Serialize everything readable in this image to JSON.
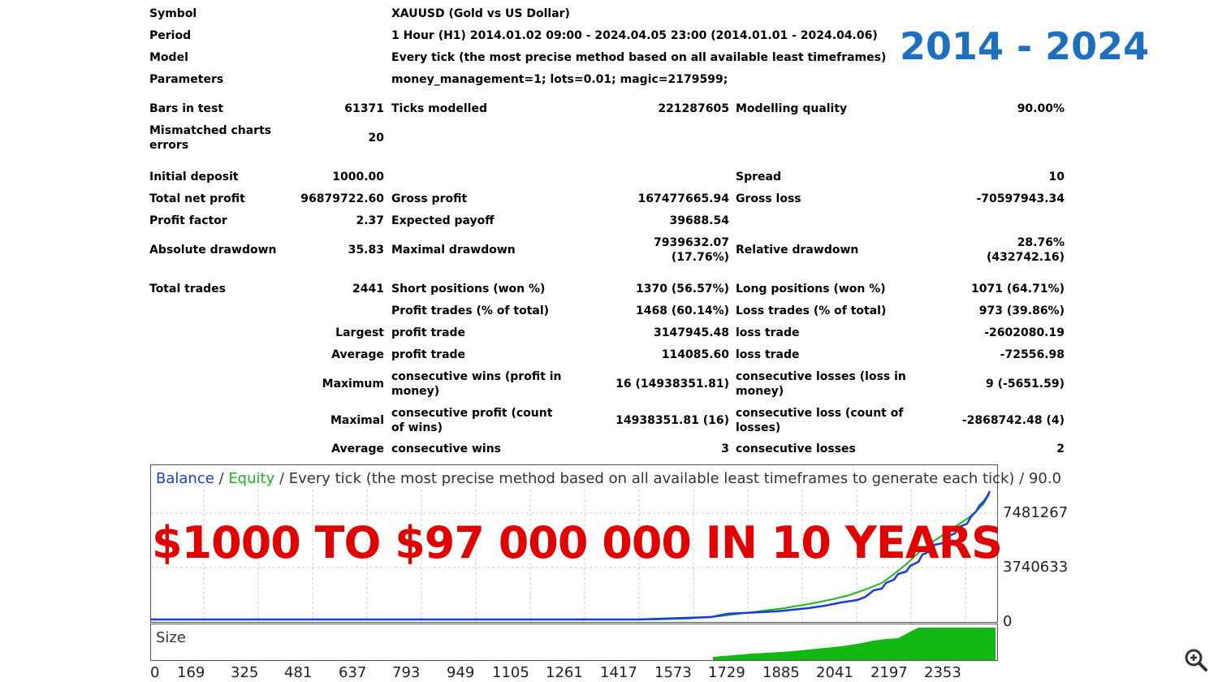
{
  "header": {
    "symbol_label": "Symbol",
    "symbol_value": "XAUUSD (Gold vs US Dollar)",
    "period_label": "Period",
    "period_value": "1 Hour (H1) 2014.01.02 09:00 - 2024.04.05 23:00 (2014.01.01 - 2024.04.06)",
    "model_label": "Model",
    "model_value": "Every tick (the most precise method based on all available least timeframes)",
    "parameters_label": "Parameters",
    "parameters_value": "money_management=1; lots=0.01; magic=2179599;"
  },
  "banner_years": "2014 - 2024",
  "stats": {
    "bars_label": "Bars in test",
    "bars_value": "61371",
    "ticks_label": "Ticks modelled",
    "ticks_value": "221287605",
    "quality_label": "Modelling quality",
    "quality_value": "90.00%",
    "mismatched_label": "Mismatched charts errors",
    "mismatched_value": "20",
    "initial_deposit_label": "Initial deposit",
    "initial_deposit_value": "1000.00",
    "spread_label": "Spread",
    "spread_value": "10",
    "net_profit_label": "Total net profit",
    "net_profit_value": "96879722.60",
    "gross_profit_label": "Gross profit",
    "gross_profit_value": "167477665.94",
    "gross_loss_label": "Gross loss",
    "gross_loss_value": "-70597943.34",
    "profit_factor_label": "Profit factor",
    "profit_factor_value": "2.37",
    "expected_payoff_label": "Expected payoff",
    "expected_payoff_value": "39688.54",
    "abs_drawdown_label": "Absolute drawdown",
    "abs_drawdown_value": "35.83",
    "max_drawdown_label": "Maximal drawdown",
    "max_drawdown_value_1": "7939632.07",
    "max_drawdown_value_2": "(17.76%)",
    "rel_drawdown_label": "Relative drawdown",
    "rel_drawdown_value_1": "28.76%",
    "rel_drawdown_value_2": "(432742.16)",
    "total_trades_label": "Total trades",
    "total_trades_value": "2441",
    "short_label": "Short positions (won %)",
    "short_value": "1370 (56.57%)",
    "long_label": "Long positions (won %)",
    "long_value": "1071 (64.71%)",
    "profit_trades_label": "Profit trades (% of total)",
    "profit_trades_value": "1468 (60.14%)",
    "loss_trades_label": "Loss trades (% of total)",
    "loss_trades_value": "973 (39.86%)",
    "largest_label": "Largest",
    "largest_profit_label": "profit trade",
    "largest_profit_value": "3147945.48",
    "largest_loss_label": "loss trade",
    "largest_loss_value": "-2602080.19",
    "average_label": "Average",
    "average_profit_label": "profit trade",
    "average_profit_value": "114085.60",
    "average_loss_label": "loss trade",
    "average_loss_value": "-72556.98",
    "maximum_label": "Maximum",
    "max_cons_wins_label": "consecutive wins (profit in money)",
    "max_cons_wins_value": "16 (14938351.81)",
    "max_cons_losses_label": "consecutive losses (loss in money)",
    "max_cons_losses_value": "9 (-5651.59)",
    "maximal_label": "Maximal",
    "maximal_cons_profit_label": "consecutive profit (count of wins)",
    "maximal_cons_profit_value": "14938351.81 (16)",
    "maximal_cons_loss_label": "consecutive loss (count of losses)",
    "maximal_cons_loss_value": "-2868742.48 (4)",
    "average2_label": "Average",
    "avg_cons_wins_label": "consecutive wins",
    "avg_cons_wins_value": "3",
    "avg_cons_losses_label": "consecutive losses",
    "avg_cons_losses_value": "2"
  },
  "chart": {
    "legend_balance": "Balance",
    "legend_sep1": " / ",
    "legend_equity": "Equity",
    "legend_rest": " / Every tick (the most precise method based on all available least timeframes to generate each tick) / 90.0",
    "y_labels": [
      "7481267",
      "3740633",
      "0"
    ],
    "size_label": "Size",
    "x_labels": [
      "0",
      "169",
      "325",
      "481",
      "637",
      "793",
      "949",
      "1105",
      "1261",
      "1417",
      "1573",
      "1729",
      "1885",
      "2041",
      "2197",
      "2353"
    ],
    "promo_text": "$1000 TO $97 000 000 IN 10 YEARS",
    "balance_color": "#1c3bd6",
    "equity_color": "#1db51d",
    "promo_color": "#e00000"
  }
}
